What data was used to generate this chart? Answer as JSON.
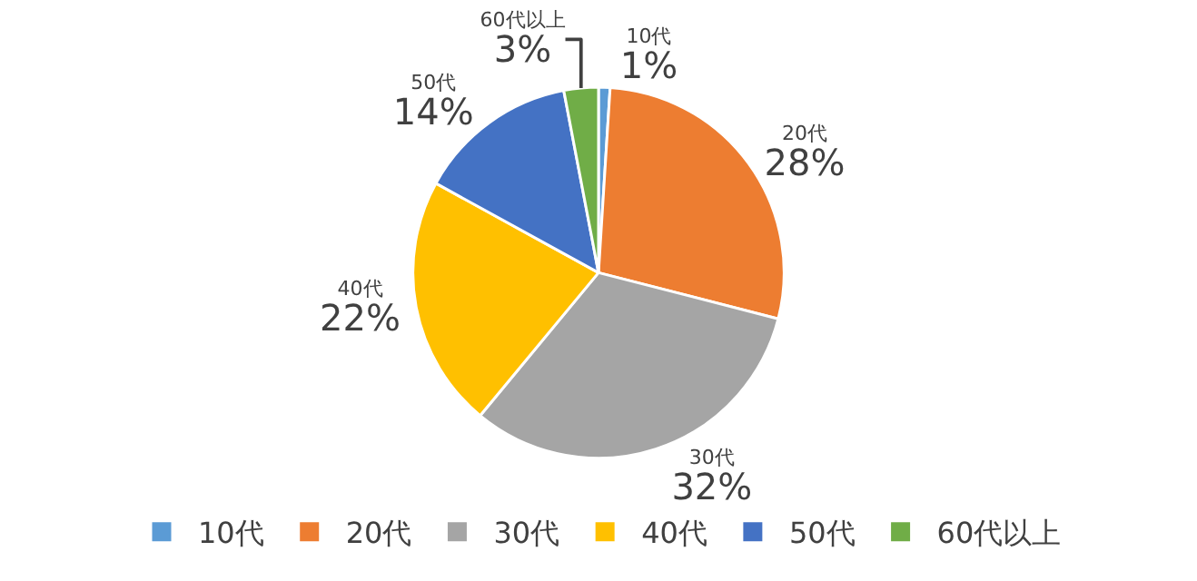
{
  "chart_data": {
    "type": "pie",
    "categories": [
      "10代",
      "20代",
      "30代",
      "40代",
      "50代",
      "60代以上"
    ],
    "values": [
      1,
      28,
      32,
      22,
      14,
      3
    ],
    "value_labels": [
      "1%",
      "28%",
      "32%",
      "22%",
      "14%",
      "3%"
    ],
    "colors": [
      "#5b9bd5",
      "#ed7d31",
      "#a5a5a5",
      "#ffc000",
      "#4472c4",
      "#70ad47"
    ],
    "legend": "bottom"
  }
}
